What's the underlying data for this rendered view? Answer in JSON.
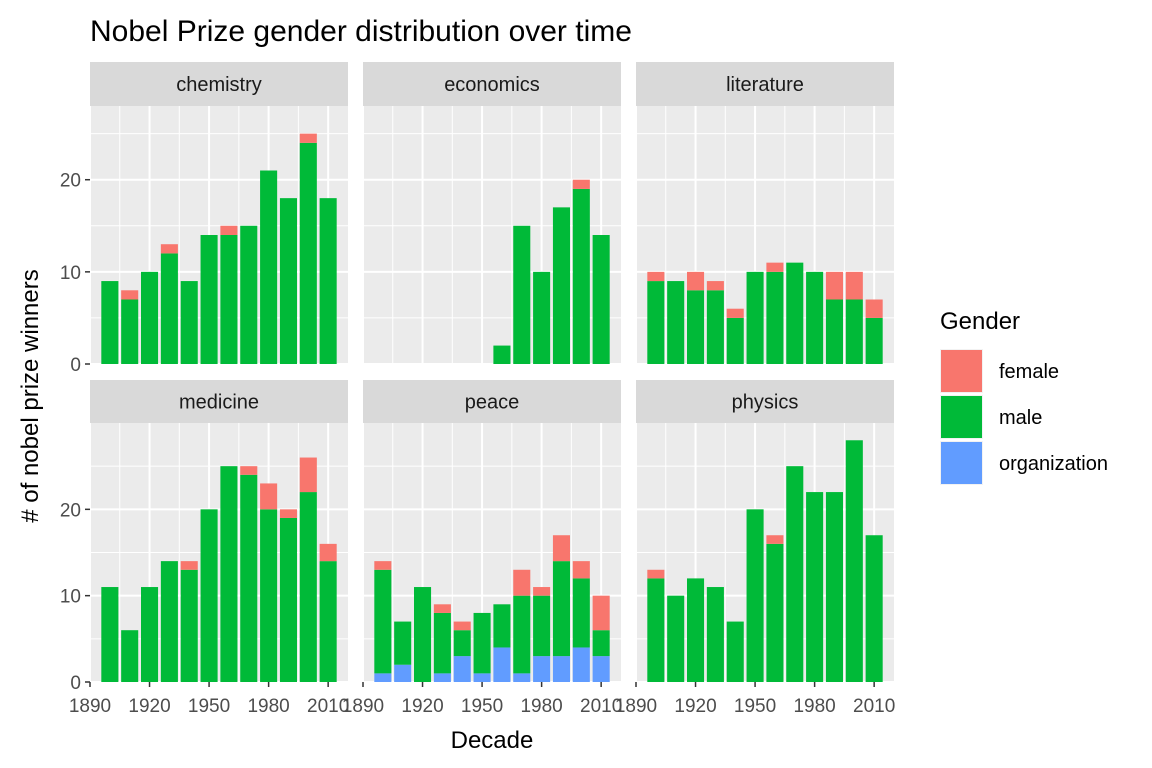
{
  "chart_data": {
    "type": "bar",
    "stacked": true,
    "facet_by": "category",
    "title": "Nobel Prize gender distribution over time",
    "xlabel": "Decade",
    "ylabel": "# of nobel prize winners",
    "x": [
      1900,
      1910,
      1920,
      1930,
      1940,
      1950,
      1960,
      1970,
      1980,
      1990,
      2000,
      2010
    ],
    "xticks": [
      1890,
      1920,
      1950,
      1980,
      2010
    ],
    "xlim": [
      1890,
      2020
    ],
    "yticks": [
      0,
      10,
      20
    ],
    "ylim_top_row": [
      0,
      28
    ],
    "ylim_bottom_row": [
      0,
      30
    ],
    "grid": true,
    "legend": {
      "title": "Gender",
      "position": "right",
      "entries": [
        {
          "name": "female",
          "color": "#F8766D"
        },
        {
          "name": "male",
          "color": "#00BA38"
        },
        {
          "name": "organization",
          "color": "#619CFF"
        }
      ]
    },
    "panel_background": "#EBEBEB",
    "strip_background": "#D9D9D9",
    "facets": [
      {
        "name": "chemistry",
        "series": {
          "organization": [
            0,
            0,
            0,
            0,
            0,
            0,
            0,
            0,
            0,
            0,
            0,
            0
          ],
          "male": [
            9,
            7,
            10,
            12,
            9,
            14,
            14,
            15,
            21,
            18,
            24,
            18
          ],
          "female": [
            0,
            1,
            0,
            1,
            0,
            0,
            1,
            0,
            0,
            0,
            1,
            0
          ]
        }
      },
      {
        "name": "economics",
        "series": {
          "organization": [
            0,
            0,
            0,
            0,
            0,
            0,
            0,
            0,
            0,
            0,
            0,
            0
          ],
          "male": [
            0,
            0,
            0,
            0,
            0,
            0,
            2,
            15,
            10,
            17,
            19,
            14
          ],
          "female": [
            0,
            0,
            0,
            0,
            0,
            0,
            0,
            0,
            0,
            0,
            1,
            0
          ]
        }
      },
      {
        "name": "literature",
        "series": {
          "organization": [
            0,
            0,
            0,
            0,
            0,
            0,
            0,
            0,
            0,
            0,
            0,
            0
          ],
          "male": [
            9,
            9,
            8,
            8,
            5,
            10,
            10,
            11,
            10,
            7,
            7,
            5
          ],
          "female": [
            1,
            0,
            2,
            1,
            1,
            0,
            1,
            0,
            0,
            3,
            3,
            2
          ]
        }
      },
      {
        "name": "medicine",
        "series": {
          "organization": [
            0,
            0,
            0,
            0,
            0,
            0,
            0,
            0,
            0,
            0,
            0,
            0
          ],
          "male": [
            11,
            6,
            11,
            14,
            13,
            20,
            25,
            24,
            20,
            19,
            22,
            14
          ],
          "female": [
            0,
            0,
            0,
            0,
            1,
            0,
            0,
            1,
            3,
            1,
            4,
            2
          ]
        }
      },
      {
        "name": "peace",
        "series": {
          "organization": [
            1,
            2,
            0,
            1,
            3,
            1,
            4,
            1,
            3,
            3,
            4,
            3
          ],
          "male": [
            12,
            5,
            11,
            7,
            3,
            7,
            5,
            9,
            7,
            11,
            8,
            3
          ],
          "female": [
            1,
            0,
            0,
            1,
            1,
            0,
            0,
            3,
            1,
            3,
            2,
            4
          ]
        }
      },
      {
        "name": "physics",
        "series": {
          "organization": [
            0,
            0,
            0,
            0,
            0,
            0,
            0,
            0,
            0,
            0,
            0,
            0
          ],
          "male": [
            12,
            10,
            12,
            11,
            7,
            20,
            16,
            25,
            22,
            22,
            28,
            17
          ],
          "female": [
            1,
            0,
            0,
            0,
            0,
            0,
            1,
            0,
            0,
            0,
            0,
            0
          ]
        }
      }
    ]
  }
}
